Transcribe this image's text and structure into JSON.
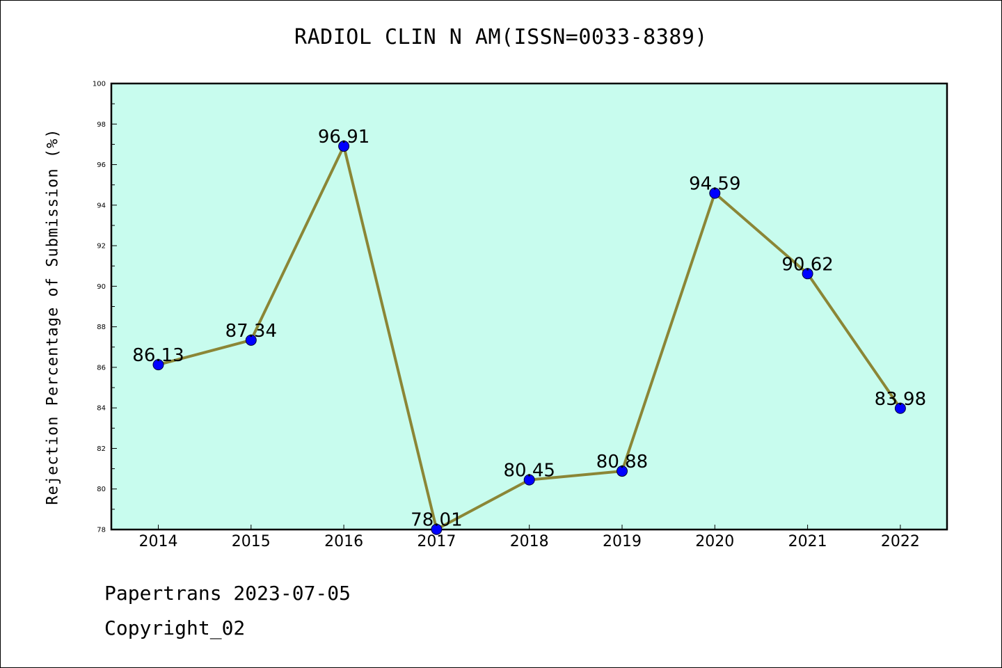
{
  "chart_data": {
    "type": "line",
    "title": "RADIOL CLIN N AM(ISSN=0033-8389)",
    "ylabel": "Rejection Percentage of Submission (%)",
    "xlabel": "",
    "categories": [
      "2014",
      "2015",
      "2016",
      "2017",
      "2018",
      "2019",
      "2020",
      "2021",
      "2022"
    ],
    "series": [
      {
        "values": [
          86.13,
          87.34,
          96.91,
          78.01,
          80.45,
          80.88,
          94.59,
          90.62,
          83.98
        ],
        "labels": [
          "86.13",
          "87.34",
          "96.91",
          "78.01",
          "80.45",
          "80.88",
          "94.59",
          "90.62",
          "83.98"
        ]
      }
    ],
    "ylim": [
      78,
      100
    ],
    "yticks": [
      "78",
      "80",
      "82",
      "84",
      "86",
      "88",
      "90",
      "92",
      "94",
      "96",
      "98",
      "100"
    ],
    "grid": false,
    "colors": {
      "plot_background": "#c8fcee",
      "line": "#8b8636",
      "marker": "#0000ff"
    }
  },
  "footer": {
    "line1": "Papertrans 2023-07-05",
    "line2": "Copyright_02"
  }
}
